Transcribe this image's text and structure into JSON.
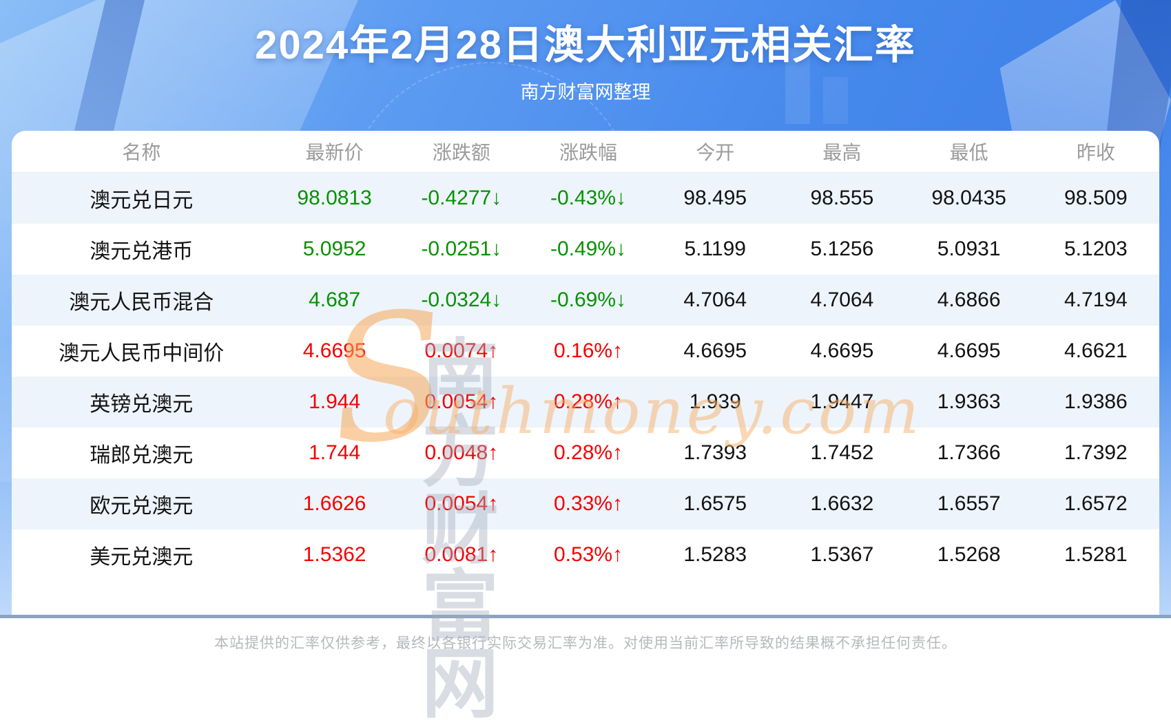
{
  "header": {
    "title": "2024年2月28日澳大利亚元相关汇率",
    "subtitle": "南方财富网整理"
  },
  "table": {
    "columns": [
      "名称",
      "最新价",
      "涨跌额",
      "涨跌幅",
      "今开",
      "最高",
      "最低",
      "昨收"
    ],
    "rows": [
      {
        "name": "澳元兑日元",
        "latest": "98.0813",
        "change": "-0.4277↓",
        "change_pct": "-0.43%↓",
        "open": "98.495",
        "high": "98.555",
        "low": "98.0435",
        "prev_close": "98.509",
        "trend": "down"
      },
      {
        "name": "澳元兑港币",
        "latest": "5.0952",
        "change": "-0.0251↓",
        "change_pct": "-0.49%↓",
        "open": "5.1199",
        "high": "5.1256",
        "low": "5.0931",
        "prev_close": "5.1203",
        "trend": "down"
      },
      {
        "name": "澳元人民币混合",
        "latest": "4.687",
        "change": "-0.0324↓",
        "change_pct": "-0.69%↓",
        "open": "4.7064",
        "high": "4.7064",
        "low": "4.6866",
        "prev_close": "4.7194",
        "trend": "down"
      },
      {
        "name": "澳元人民币中间价",
        "latest": "4.6695",
        "change": "0.0074↑",
        "change_pct": "0.16%↑",
        "open": "4.6695",
        "high": "4.6695",
        "low": "4.6695",
        "prev_close": "4.6621",
        "trend": "up"
      },
      {
        "name": "英镑兑澳元",
        "latest": "1.944",
        "change": "0.0054↑",
        "change_pct": "0.28%↑",
        "open": "1.939",
        "high": "1.9447",
        "low": "1.9363",
        "prev_close": "1.9386",
        "trend": "up"
      },
      {
        "name": "瑞郎兑澳元",
        "latest": "1.744",
        "change": "0.0048↑",
        "change_pct": "0.28%↑",
        "open": "1.7393",
        "high": "1.7452",
        "low": "1.7366",
        "prev_close": "1.7392",
        "trend": "up"
      },
      {
        "name": "欧元兑澳元",
        "latest": "1.6626",
        "change": "0.0054↑",
        "change_pct": "0.33%↑",
        "open": "1.6575",
        "high": "1.6632",
        "low": "1.6557",
        "prev_close": "1.6572",
        "trend": "up"
      },
      {
        "name": "美元兑澳元",
        "latest": "1.5362",
        "change": "0.0081↑",
        "change_pct": "0.53%↑",
        "open": "1.5283",
        "high": "1.5367",
        "low": "1.5268",
        "prev_close": "1.5281",
        "trend": "up"
      }
    ]
  },
  "watermark": {
    "initial": "S",
    "cjk": "南方财富网",
    "latin": "outhmoney.com"
  },
  "footer": {
    "disclaimer": "本站提供的汇率仅供参考，最终以各银行实际交易汇率为准。对使用当前汇率所导致的结果概不承担任何责任。"
  },
  "colors": {
    "up_red": "#f50000",
    "down_green": "#089104",
    "background_blue": "#4689ec",
    "stripe_blue": "#edf4fb",
    "divider_blue_gray": "#8ba3c0"
  }
}
